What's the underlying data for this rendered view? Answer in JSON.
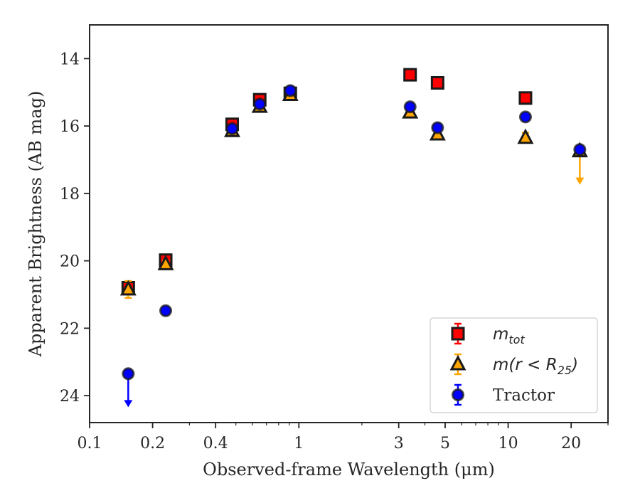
{
  "chart_data": {
    "type": "scatter",
    "xlabel": "Observed-frame Wavelength (μm)",
    "ylabel": "Apparent Brightness (AB mag)",
    "xscale": "log",
    "xlim": [
      0.1,
      30
    ],
    "ylim": [
      24.8,
      13.0
    ],
    "y_inverted": true,
    "grid": false,
    "legend_position": "lower-right",
    "x_ticks": [
      {
        "value": 0.1,
        "label": "0.1"
      },
      {
        "value": 0.2,
        "label": "0.2"
      },
      {
        "value": 0.4,
        "label": "0.4"
      },
      {
        "value": 1,
        "label": "1"
      },
      {
        "value": 3,
        "label": "3"
      },
      {
        "value": 5,
        "label": "5"
      },
      {
        "value": 10,
        "label": "10"
      },
      {
        "value": 20,
        "label": "20"
      }
    ],
    "y_ticks": [
      {
        "value": 14,
        "label": "14"
      },
      {
        "value": 16,
        "label": "16"
      },
      {
        "value": 18,
        "label": "18"
      },
      {
        "value": 20,
        "label": "20"
      },
      {
        "value": 22,
        "label": "22"
      },
      {
        "value": 24,
        "label": "24"
      }
    ],
    "series": [
      {
        "name": "m_tot",
        "legend_main": "m",
        "legend_sub": "tot",
        "marker": "square",
        "color": "#ff0000",
        "edge_color": "#1a1a1a",
        "points": [
          {
            "x": 0.153,
            "y": 20.8,
            "err": 0.15
          },
          {
            "x": 0.231,
            "y": 19.98,
            "err": 0.1
          },
          {
            "x": 0.48,
            "y": 15.95,
            "err": 0.08
          },
          {
            "x": 0.65,
            "y": 15.22,
            "err": 0.08
          },
          {
            "x": 0.91,
            "y": 15.03,
            "err": 0.08
          },
          {
            "x": 3.4,
            "y": 14.48,
            "err": 0.05
          },
          {
            "x": 4.6,
            "y": 14.72,
            "err": 0.05
          },
          {
            "x": 12.1,
            "y": 15.17,
            "err": 0.05
          }
        ]
      },
      {
        "name": "m(r < R_25)",
        "legend_main": "m(r < R",
        "legend_sub": "25",
        "legend_close": ")",
        "marker": "triangle",
        "color": "#ffa500",
        "edge_color": "#1a1a1a",
        "points": [
          {
            "x": 0.153,
            "y": 20.85,
            "err": 0.25
          },
          {
            "x": 0.231,
            "y": 20.1,
            "err": 0.1
          },
          {
            "x": 0.48,
            "y": 16.15,
            "err": 0.08
          },
          {
            "x": 0.65,
            "y": 15.43,
            "err": 0.08
          },
          {
            "x": 0.91,
            "y": 15.08,
            "err": 0.08
          },
          {
            "x": 3.4,
            "y": 15.6,
            "err": 0.1
          },
          {
            "x": 4.6,
            "y": 16.25,
            "err": 0.1
          },
          {
            "x": 12.1,
            "y": 16.35,
            "err": 0.15
          },
          {
            "x": 22.0,
            "y": 16.75,
            "err": 0.1,
            "upper_limit": true,
            "limit_to": 17.7
          }
        ]
      },
      {
        "name": "Tractor",
        "legend_main": "Tractor",
        "marker": "circle",
        "color": "#0000ff",
        "edge_color": "#1a1a1a",
        "points": [
          {
            "x": 0.153,
            "y": 23.35,
            "err": 0.05,
            "upper_limit": true,
            "limit_to": 24.3
          },
          {
            "x": 0.231,
            "y": 21.48,
            "err": 0.05
          },
          {
            "x": 0.48,
            "y": 16.08,
            "err": 0.05
          },
          {
            "x": 0.65,
            "y": 15.35,
            "err": 0.05
          },
          {
            "x": 0.91,
            "y": 14.95,
            "err": 0.05
          },
          {
            "x": 3.4,
            "y": 15.43,
            "err": 0.05
          },
          {
            "x": 4.6,
            "y": 16.05,
            "err": 0.05
          },
          {
            "x": 12.1,
            "y": 15.73,
            "err": 0.05
          },
          {
            "x": 22.0,
            "y": 16.7,
            "err": 0.05
          }
        ]
      }
    ]
  }
}
